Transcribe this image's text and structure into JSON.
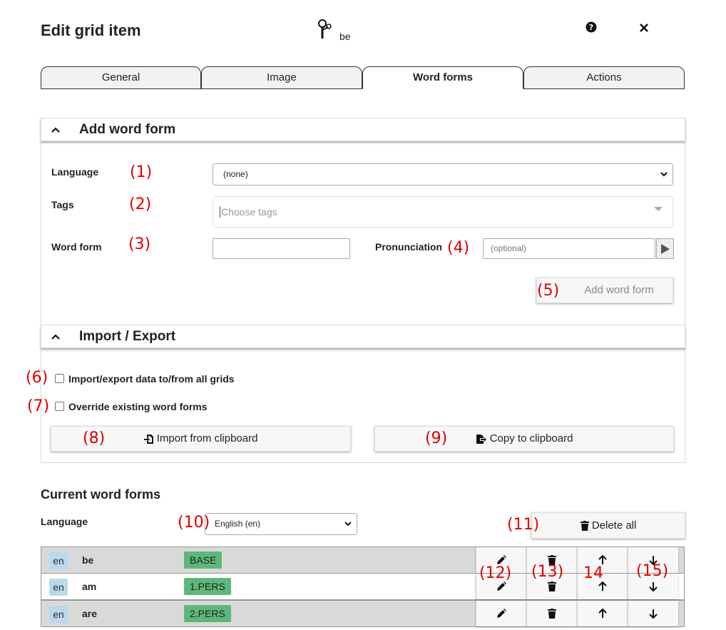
{
  "header": {
    "title": "Edit grid item",
    "item_label": "be",
    "help_icon": "question-circle-icon",
    "close_icon": "close-icon"
  },
  "tabs": [
    {
      "label": "General",
      "active": false
    },
    {
      "label": "Image",
      "active": false
    },
    {
      "label": "Word forms",
      "active": true
    },
    {
      "label": "Actions",
      "active": false
    }
  ],
  "add_word_form": {
    "section_title": "Add word form",
    "language_label": "Language",
    "language_value": "(none)",
    "tags_label": "Tags",
    "tags_placeholder": "Choose tags",
    "word_form_label": "Word form",
    "word_form_value": "",
    "pronunciation_label": "Pronunciation",
    "pronunciation_placeholder": "(optional)",
    "add_button_label": "Add word form"
  },
  "import_export": {
    "section_title": "Import / Export",
    "import_all_label": "Import/export data to/from all grids",
    "import_all_checked": false,
    "override_label": "Override existing word forms",
    "override_checked": false,
    "import_button_label": "Import from clipboard",
    "copy_button_label": "Copy to clipboard"
  },
  "current_word_forms": {
    "title": "Current word forms",
    "language_label": "Language",
    "language_value": "English (en)",
    "delete_all_label": "Delete all",
    "rows": [
      {
        "lang": "en",
        "word": "be",
        "tag": "BASE"
      },
      {
        "lang": "en",
        "word": "am",
        "tag": "1.PERS"
      },
      {
        "lang": "en",
        "word": "are",
        "tag": "2.PERS"
      }
    ]
  },
  "annotations": [
    "(1)",
    "(2)",
    "(3)",
    "(4)",
    "(5)",
    "(6)",
    "(7)",
    "(8)",
    "(9)",
    "(10)",
    "(11)",
    "(12)",
    "(13)",
    "14",
    "(15)"
  ],
  "colors": {
    "annotation": "#e00000",
    "tag_badge": "#5cb87a",
    "lang_badge": "#b9d9ec",
    "row_shaded": "#d9d9d9"
  }
}
